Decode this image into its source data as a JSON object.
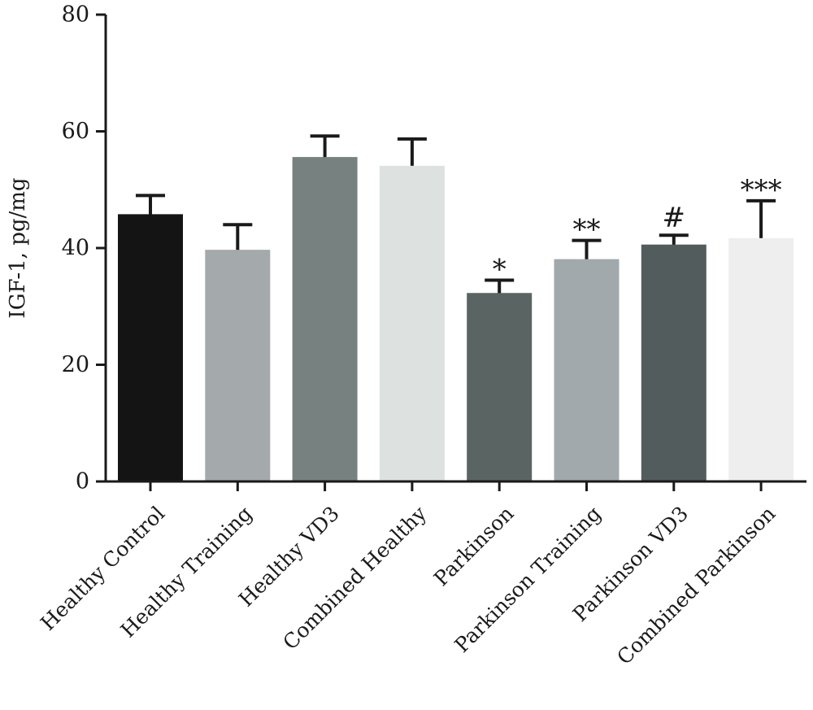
{
  "chart_data": {
    "type": "bar",
    "title": "",
    "xlabel": "",
    "ylabel": "IGF-1, pg/mg",
    "ylim": [
      0,
      80
    ],
    "yticks": [
      "0",
      "20",
      "40",
      "60",
      "80"
    ],
    "grid": false,
    "categories": [
      "Healthy Control",
      "Healthy Training",
      "Healthy VD3",
      "Combined Healthy",
      "Parkinson",
      "Parkinson Training",
      "Parkinson VD3",
      "Combined Parkinson"
    ],
    "values": [
      45.8,
      39.7,
      55.6,
      54.1,
      32.3,
      38.1,
      40.6,
      41.7
    ],
    "error_upper": [
      3.2,
      4.3,
      3.6,
      4.6,
      2.2,
      3.2,
      1.6,
      6.4
    ],
    "annotations": [
      "",
      "",
      "",
      "",
      "*",
      "**",
      "#",
      "***"
    ],
    "colors": [
      "#141414",
      "#a4a9ac",
      "#778280",
      "#dde1e0",
      "#5a6463",
      "#a2a9ac",
      "#535c5c",
      "#eeeeee"
    ]
  }
}
